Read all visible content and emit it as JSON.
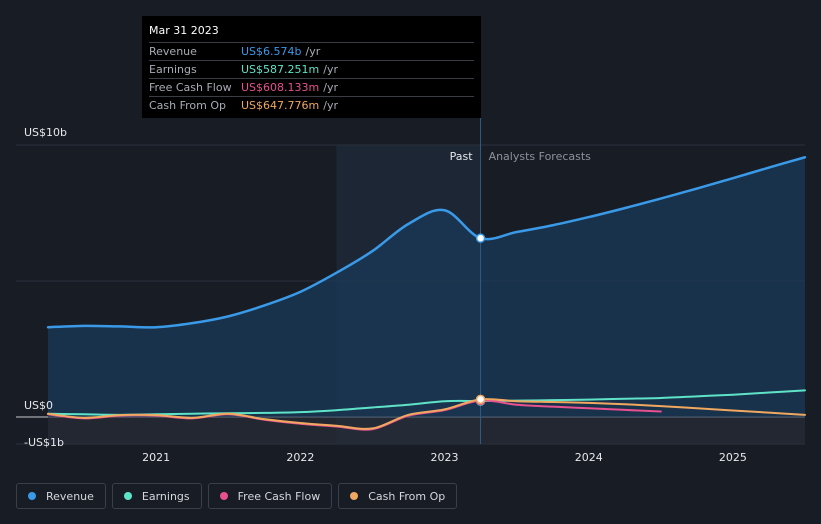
{
  "tooltip": {
    "date": "Mar 31 2023",
    "rows": [
      {
        "label": "Revenue",
        "value": "US$6.574b",
        "unit": "/yr",
        "color": "#3a9ae8"
      },
      {
        "label": "Earnings",
        "value": "US$587.251m",
        "unit": "/yr",
        "color": "#5fe3c8"
      },
      {
        "label": "Free Cash Flow",
        "value": "US$608.133m",
        "unit": "/yr",
        "color": "#e8508f"
      },
      {
        "label": "Cash From Op",
        "value": "US$647.776m",
        "unit": "/yr",
        "color": "#f0a860"
      }
    ]
  },
  "labels": {
    "past": "Past",
    "forecast": "Analysts Forecasts"
  },
  "legend": [
    {
      "label": "Revenue",
      "color": "#3a9ae8"
    },
    {
      "label": "Earnings",
      "color": "#5fe3c8"
    },
    {
      "label": "Free Cash Flow",
      "color": "#e8508f"
    },
    {
      "label": "Cash From Op",
      "color": "#f0a860"
    }
  ],
  "chart_data": {
    "type": "line",
    "ytick_labels": [
      "US$10b",
      "US$0",
      "-US$1b"
    ],
    "yticks": [
      10,
      0,
      -1
    ],
    "ylim": [
      -1,
      10
    ],
    "xlim": [
      2020.25,
      2025.5
    ],
    "xticks": [
      2021,
      2022,
      2023,
      2024,
      2025
    ],
    "xtick_labels": [
      "2021",
      "2022",
      "2023",
      "2024",
      "2025"
    ],
    "highlight_x": 2023.25,
    "shaded_region": [
      2022.25,
      2023.25
    ],
    "series": [
      {
        "name": "Revenue",
        "color": "#3a9ae8",
        "fill": true,
        "points": [
          [
            2020.25,
            3.3
          ],
          [
            2020.5,
            3.35
          ],
          [
            2020.75,
            3.33
          ],
          [
            2021,
            3.3
          ],
          [
            2021.25,
            3.45
          ],
          [
            2021.5,
            3.7
          ],
          [
            2021.75,
            4.1
          ],
          [
            2022,
            4.6
          ],
          [
            2022.25,
            5.3
          ],
          [
            2022.5,
            6.1
          ],
          [
            2022.75,
            7.1
          ],
          [
            2023,
            7.6
          ],
          [
            2023.25,
            6.574
          ],
          [
            2023.5,
            6.8
          ],
          [
            2023.75,
            7.05
          ],
          [
            2024,
            7.35
          ],
          [
            2024.25,
            7.68
          ],
          [
            2024.5,
            8.03
          ],
          [
            2024.75,
            8.4
          ],
          [
            2025,
            8.78
          ],
          [
            2025.25,
            9.17
          ],
          [
            2025.5,
            9.55
          ]
        ]
      },
      {
        "name": "Earnings",
        "color": "#5fe3c8",
        "fill": false,
        "points": [
          [
            2020.25,
            0.12
          ],
          [
            2020.5,
            0.1
          ],
          [
            2020.75,
            0.08
          ],
          [
            2021,
            0.1
          ],
          [
            2021.25,
            0.12
          ],
          [
            2021.5,
            0.14
          ],
          [
            2021.75,
            0.15
          ],
          [
            2022,
            0.18
          ],
          [
            2022.25,
            0.25
          ],
          [
            2022.5,
            0.35
          ],
          [
            2022.75,
            0.45
          ],
          [
            2023,
            0.58
          ],
          [
            2023.25,
            0.587
          ],
          [
            2023.5,
            0.6
          ],
          [
            2023.75,
            0.62
          ],
          [
            2024,
            0.64
          ],
          [
            2024.25,
            0.67
          ],
          [
            2024.5,
            0.7
          ],
          [
            2024.75,
            0.76
          ],
          [
            2025,
            0.82
          ],
          [
            2025.25,
            0.9
          ],
          [
            2025.5,
            0.98
          ]
        ]
      },
      {
        "name": "Free Cash Flow",
        "color": "#e8508f",
        "fill": false,
        "points": [
          [
            2020.25,
            0.1
          ],
          [
            2020.5,
            -0.05
          ],
          [
            2020.75,
            0.05
          ],
          [
            2021,
            0.05
          ],
          [
            2021.25,
            -0.05
          ],
          [
            2021.5,
            0.1
          ],
          [
            2021.75,
            -0.1
          ],
          [
            2022,
            -0.25
          ],
          [
            2022.25,
            -0.35
          ],
          [
            2022.5,
            -0.45
          ],
          [
            2022.75,
            0.05
          ],
          [
            2023,
            0.25
          ],
          [
            2023.25,
            0.608
          ],
          [
            2023.5,
            0.45
          ],
          [
            2023.75,
            0.38
          ],
          [
            2024,
            0.32
          ],
          [
            2024.25,
            0.26
          ],
          [
            2024.5,
            0.2
          ]
        ]
      },
      {
        "name": "Cash From Op",
        "color": "#f0a860",
        "fill": false,
        "points": [
          [
            2020.25,
            0.12
          ],
          [
            2020.5,
            -0.03
          ],
          [
            2020.75,
            0.07
          ],
          [
            2021,
            0.07
          ],
          [
            2021.25,
            -0.03
          ],
          [
            2021.5,
            0.12
          ],
          [
            2021.75,
            -0.08
          ],
          [
            2022,
            -0.22
          ],
          [
            2022.25,
            -0.32
          ],
          [
            2022.5,
            -0.42
          ],
          [
            2022.75,
            0.08
          ],
          [
            2023,
            0.28
          ],
          [
            2023.25,
            0.648
          ],
          [
            2023.5,
            0.58
          ],
          [
            2023.75,
            0.55
          ],
          [
            2024,
            0.52
          ],
          [
            2024.25,
            0.47
          ],
          [
            2024.5,
            0.4
          ],
          [
            2024.75,
            0.32
          ],
          [
            2025,
            0.24
          ],
          [
            2025.25,
            0.16
          ],
          [
            2025.5,
            0.08
          ]
        ]
      }
    ]
  }
}
